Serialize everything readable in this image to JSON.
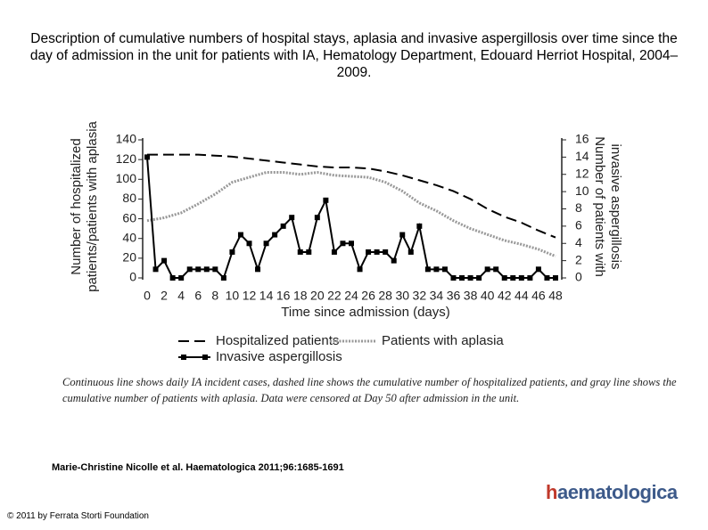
{
  "title": "Description of cumulative numbers of hospital stays, aplasia and invasive aspergillosis over time since the day of admission in the unit for patients with IA, Hematology Department, Edouard Herriot Hospital, 2004–2009.",
  "chart_data": {
    "type": "line",
    "xlabel": "Time since admission (days)",
    "ylabel": [
      "Number of hospitalized",
      "patients/patients with aplasia"
    ],
    "y2label": [
      "Number of patients with",
      "invasive aspergillosis"
    ],
    "xlim": [
      0,
      48
    ],
    "xticks": [
      0,
      2,
      4,
      6,
      8,
      10,
      12,
      14,
      16,
      18,
      20,
      22,
      24,
      26,
      28,
      30,
      32,
      34,
      36,
      38,
      40,
      42,
      44,
      46,
      48
    ],
    "ylim": [
      0,
      140
    ],
    "yticks": [
      0,
      20,
      40,
      60,
      80,
      100,
      120,
      140
    ],
    "y2lim": [
      0,
      16
    ],
    "y2ticks": [
      0,
      2,
      4,
      6,
      8,
      10,
      12,
      14,
      16
    ],
    "series": [
      {
        "name": "Hospitalized patients",
        "color": "#000000",
        "style": "dashed",
        "x": [
          0,
          2,
          4,
          6,
          8,
          10,
          12,
          14,
          16,
          18,
          20,
          22,
          24,
          26,
          28,
          30,
          32,
          34,
          36,
          38,
          40,
          42,
          44,
          46,
          48
        ],
        "values": [
          125,
          125,
          125,
          125,
          124,
          123,
          121,
          119,
          117,
          115,
          113,
          112,
          112,
          111,
          108,
          104,
          99,
          94,
          88,
          80,
          70,
          62,
          56,
          48,
          41
        ]
      },
      {
        "name": "Patients with aplasia",
        "color": "#999999",
        "style": "dotted",
        "x": [
          0,
          2,
          4,
          6,
          8,
          10,
          12,
          14,
          16,
          18,
          20,
          22,
          24,
          26,
          28,
          30,
          32,
          34,
          36,
          38,
          40,
          42,
          44,
          46,
          48
        ],
        "values": [
          58,
          61,
          66,
          75,
          85,
          97,
          102,
          107,
          107,
          105,
          107,
          104,
          103,
          102,
          97,
          88,
          76,
          68,
          58,
          50,
          44,
          38,
          34,
          29,
          22
        ]
      },
      {
        "name": "Invasive aspergillosis",
        "color": "#000000",
        "style": "solid",
        "axis": "y2",
        "markers": true,
        "x": [
          0,
          1,
          2,
          3,
          4,
          5,
          6,
          7,
          8,
          9,
          10,
          11,
          12,
          13,
          14,
          15,
          16,
          17,
          18,
          19,
          20,
          21,
          22,
          23,
          24,
          25,
          26,
          27,
          28,
          29,
          30,
          31,
          32,
          33,
          34,
          35,
          36,
          37,
          38,
          39,
          40,
          41,
          42,
          43,
          44,
          45,
          46,
          47,
          48
        ],
        "values": [
          14,
          1,
          2,
          0,
          0,
          1,
          1,
          1,
          1,
          0,
          3,
          5,
          4,
          1,
          4,
          5,
          6,
          7,
          3,
          3,
          7,
          9,
          3,
          4,
          4,
          1,
          3,
          3,
          3,
          2,
          5,
          3,
          6,
          1,
          1,
          1,
          0,
          0,
          0,
          0,
          1,
          1,
          0,
          0,
          0,
          0,
          1,
          0,
          0
        ]
      }
    ]
  },
  "caption": "Continuous line shows daily IA incident cases, dashed line shows the cumulative number of hospitalized patients, and gray line shows the cumulative number of patients with aplasia. Data were censored at Day 50 after admission in the unit.",
  "citation": "Marie-Christine Nicolle et al. Haematologica 2011;96:1685-1691",
  "copyright": "© 2011 by Ferrata Storti Foundation",
  "logo": "haematologica"
}
